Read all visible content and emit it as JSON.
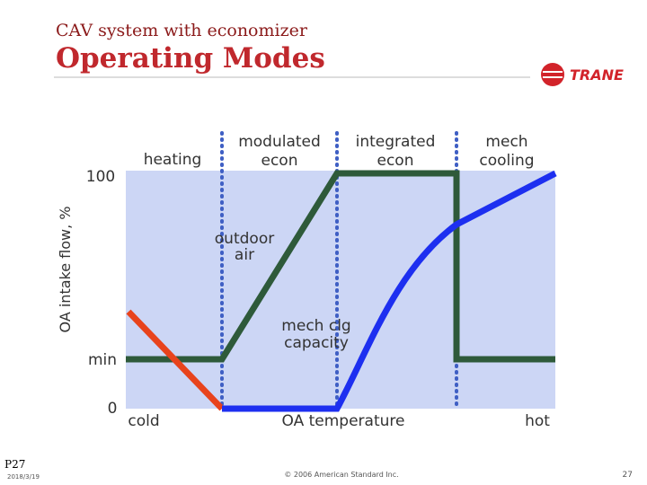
{
  "header": {
    "subtitle": "CAV system with economizer",
    "title": "Operating Modes"
  },
  "logo": "TRANE",
  "diagram": {
    "y_axis_label": "OA intake flow, %",
    "y_labels": [
      "100",
      "min",
      "0"
    ],
    "modes": [
      [
        "heating"
      ],
      [
        "modulated",
        "econ"
      ],
      [
        "integrated",
        "econ"
      ],
      [
        "mech",
        "cooling"
      ]
    ],
    "annotations": {
      "outdoor_air": [
        "outdoor",
        "air"
      ],
      "mech_clg": [
        "mech clg",
        "capacity"
      ]
    },
    "x_labels": [
      "cold",
      "OA temperature",
      "hot"
    ]
  },
  "footer": {
    "page_code": "P27",
    "date": "2018/3/19",
    "copyright": "© 2006 American Standard Inc.",
    "page_number": "27"
  }
}
